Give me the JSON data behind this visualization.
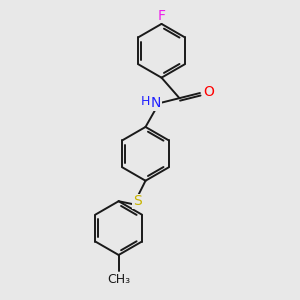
{
  "background_color": "#e8e8e8",
  "bond_color": "#1a1a1a",
  "atom_colors": {
    "F": "#ed1eeb",
    "O": "#ff0000",
    "N": "#2020ff",
    "S": "#c8b400",
    "C": "#1a1a1a"
  },
  "lw": 1.4,
  "figsize": [
    3.0,
    3.0
  ],
  "dpi": 100
}
